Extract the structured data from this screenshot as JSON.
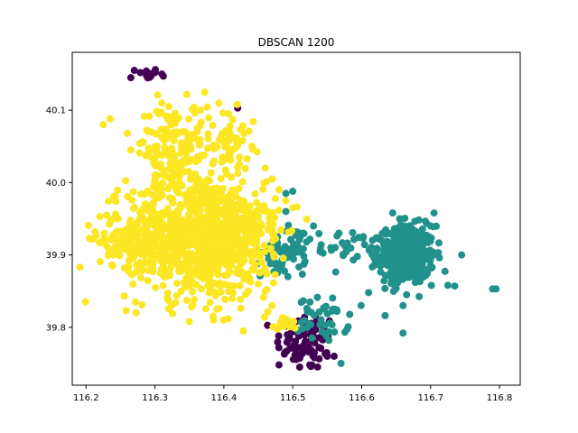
{
  "chart_data": {
    "type": "scatter",
    "title": "DBSCAN 1200",
    "xlabel": "",
    "ylabel": "",
    "xlim": [
      116.18,
      116.83
    ],
    "ylim": [
      39.72,
      40.18
    ],
    "xticks": [
      116.2,
      116.3,
      116.4,
      116.5,
      116.6,
      116.7,
      116.8
    ],
    "xtick_labels": [
      "116.2",
      "116.3",
      "116.4",
      "116.5",
      "116.6",
      "116.7",
      "116.8"
    ],
    "yticks": [
      39.8,
      39.9,
      40.0,
      40.1
    ],
    "ytick_labels": [
      "39.8",
      "39.9",
      "40.0",
      "40.1"
    ],
    "grid": false,
    "colors": {
      "cluster_0": "#440154",
      "cluster_1": "#21918c",
      "cluster_2": "#fde725"
    },
    "series": [
      {
        "color": "#440154",
        "clusters": [
          {
            "cx": 116.29,
            "cy": 40.15,
            "sx": 0.008,
            "sy": 0.004,
            "n": 14
          },
          {
            "cx": 116.52,
            "cy": 39.78,
            "sx": 0.022,
            "sy": 0.02,
            "n": 80
          }
        ],
        "points": [
          [
            116.42,
            40.103
          ],
          [
            116.27,
            40.155
          ],
          [
            116.265,
            40.145
          ],
          [
            116.3,
            40.152
          ],
          [
            116.31,
            40.15
          ],
          [
            116.55,
            39.76
          ],
          [
            116.56,
            39.76
          ],
          [
            116.48,
            39.748
          ],
          [
            116.51,
            39.745
          ]
        ]
      },
      {
        "color": "#21918c",
        "clusters": [
          {
            "cx": 116.665,
            "cy": 39.9,
            "sx": 0.02,
            "sy": 0.02,
            "n": 420
          },
          {
            "cx": 116.545,
            "cy": 39.81,
            "sx": 0.018,
            "sy": 0.015,
            "n": 45
          },
          {
            "cx": 116.49,
            "cy": 39.905,
            "sx": 0.018,
            "sy": 0.018,
            "n": 60
          },
          {
            "cx": 116.58,
            "cy": 39.915,
            "sx": 0.035,
            "sy": 0.01,
            "n": 40
          }
        ],
        "points": [
          [
            116.795,
            39.853
          ],
          [
            116.79,
            39.853
          ],
          [
            116.66,
            39.83
          ],
          [
            116.66,
            39.792
          ],
          [
            116.57,
            39.75
          ],
          [
            116.5,
            39.988
          ],
          [
            116.49,
            39.96
          ],
          [
            116.49,
            39.985
          ],
          [
            116.53,
            39.94
          ],
          [
            116.525,
            39.835
          ],
          [
            116.745,
            39.9
          ],
          [
            116.735,
            39.857
          ],
          [
            116.725,
            39.858
          ],
          [
            116.7,
            39.94
          ],
          [
            116.705,
            39.958
          ],
          [
            116.61,
            39.848
          ],
          [
            116.645,
            39.958
          ],
          [
            116.655,
            39.95
          ]
        ]
      },
      {
        "color": "#fde725",
        "clusters": [
          {
            "cx": 116.36,
            "cy": 39.93,
            "sx": 0.05,
            "sy": 0.045,
            "n": 700
          },
          {
            "cx": 116.28,
            "cy": 39.92,
            "sx": 0.03,
            "sy": 0.02,
            "n": 180
          },
          {
            "cx": 116.33,
            "cy": 40.05,
            "sx": 0.028,
            "sy": 0.03,
            "n": 140
          },
          {
            "cx": 116.41,
            "cy": 40.06,
            "sx": 0.015,
            "sy": 0.02,
            "n": 50
          },
          {
            "cx": 116.42,
            "cy": 39.92,
            "sx": 0.03,
            "sy": 0.04,
            "n": 220
          },
          {
            "cx": 116.49,
            "cy": 39.805,
            "sx": 0.008,
            "sy": 0.005,
            "n": 15
          }
        ],
        "points": [
          [
            116.205,
            39.923
          ],
          [
            116.21,
            39.922
          ],
          [
            116.22,
            39.953
          ],
          [
            116.23,
            39.955
          ],
          [
            116.24,
            39.95
          ],
          [
            116.225,
            40.08
          ],
          [
            116.235,
            40.088
          ],
          [
            116.26,
            40.068
          ],
          [
            116.265,
            40.045
          ],
          [
            116.31,
            40.11
          ],
          [
            116.32,
            40.105
          ],
          [
            116.35,
            39.808
          ],
          [
            116.39,
            39.825
          ],
          [
            116.385,
            39.81
          ],
          [
            116.46,
            40.02
          ],
          [
            116.47,
            40.005
          ],
          [
            116.48,
            39.99
          ],
          [
            116.49,
            39.975
          ],
          [
            116.5,
            39.965
          ],
          [
            116.47,
            39.83
          ],
          [
            116.46,
            39.85
          ],
          [
            116.45,
            39.86
          ],
          [
            116.24,
            39.9
          ]
        ]
      }
    ]
  }
}
